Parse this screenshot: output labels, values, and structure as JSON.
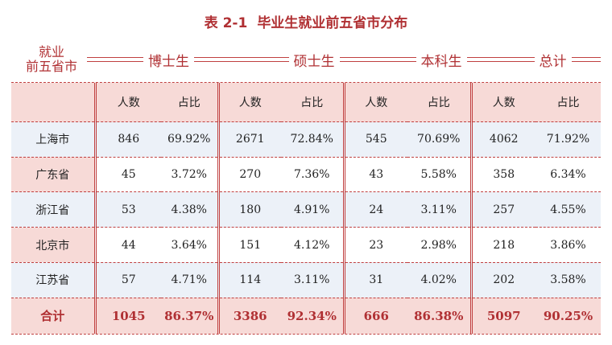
{
  "title": {
    "number": "表 2-1",
    "text": "毕业生就业前五省市分布"
  },
  "corner": {
    "line1": "就业",
    "line2": "前五省市"
  },
  "groups": [
    "博士生",
    "硕士生",
    "本科生",
    "总计"
  ],
  "subheaders": {
    "count": "人数",
    "ratio": "占比"
  },
  "rows": [
    {
      "name": "上海市",
      "values": [
        "846",
        "69.92%",
        "2671",
        "72.84%",
        "545",
        "70.69%",
        "4062",
        "71.92%"
      ]
    },
    {
      "name": "广东省",
      "values": [
        "45",
        "3.72%",
        "270",
        "7.36%",
        "43",
        "5.58%",
        "358",
        "6.34%"
      ]
    },
    {
      "name": "浙江省",
      "values": [
        "53",
        "4.38%",
        "180",
        "4.91%",
        "24",
        "3.11%",
        "257",
        "4.55%"
      ]
    },
    {
      "name": "北京市",
      "values": [
        "44",
        "3.64%",
        "151",
        "4.12%",
        "23",
        "2.98%",
        "218",
        "3.86%"
      ]
    },
    {
      "name": "江苏省",
      "values": [
        "57",
        "4.71%",
        "114",
        "3.11%",
        "31",
        "4.02%",
        "202",
        "3.58%"
      ]
    }
  ],
  "total": {
    "name": "合计",
    "values": [
      "1045",
      "86.37%",
      "3386",
      "92.34%",
      "666",
      "86.38%",
      "5097",
      "90.25%"
    ]
  },
  "colors": {
    "accent": "#b03033",
    "pink": "#f7dad7",
    "blue": "#ecf1f8"
  }
}
